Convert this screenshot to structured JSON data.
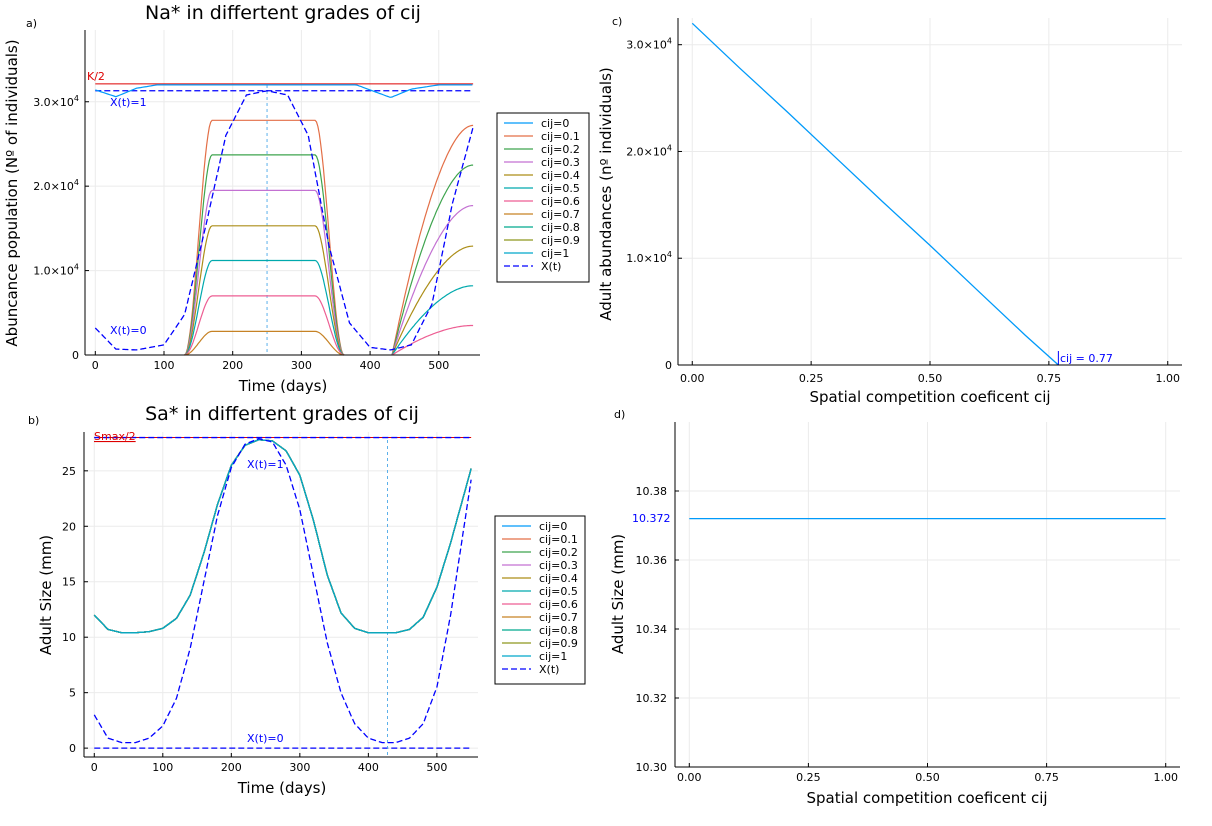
{
  "colors": {
    "palette": [
      "#009AFA",
      "#E36F47",
      "#3EA44E",
      "#C371D2",
      "#AC8E18",
      "#00A9AD",
      "#ED5E93",
      "#C68225",
      "#00A98D",
      "#8E971E",
      "#00A8CB"
    ],
    "xt": "#0000FF",
    "ref": "#DD0000",
    "grid": "#ebebeb"
  },
  "legend": {
    "series": [
      "cij=0",
      "cij=0.1",
      "cij=0.2",
      "cij=0.3",
      "cij=0.4",
      "cij=0.5",
      "cij=0.6",
      "cij=0.7",
      "cij=0.8",
      "cij=0.9",
      "cij=1"
    ],
    "xt": "X(t)"
  },
  "panel_a": {
    "tag": "a)",
    "title": "Na* in differtent grades of cij",
    "xlabel": "Time (days)",
    "ylabel": "Abuncance population (Nº of individuals)",
    "ref_label": "K/2",
    "xt1_label": "X(t)=1",
    "xt0_label": "X(t)=0",
    "xticks": [
      "0",
      "100",
      "200",
      "300",
      "400",
      "500"
    ],
    "yticks": [
      "0",
      "1.0×10",
      "2.0×10",
      "3.0×10"
    ],
    "ytick_exp": "4"
  },
  "panel_b": {
    "tag": "b)",
    "title": "Sa* in differtent grades of cij",
    "xlabel": "Time (days)",
    "ylabel": "Adult Size (mm)",
    "ref_label": "Smax/2",
    "xt1_label": "X(t)=1",
    "xt0_label": "X(t)=0",
    "xticks": [
      "0",
      "100",
      "200",
      "300",
      "400",
      "500"
    ],
    "yticks": [
      "0",
      "5",
      "10",
      "15",
      "20",
      "25"
    ]
  },
  "panel_c": {
    "tag": "c)",
    "xlabel": "Spatial competition coeficent cij",
    "ylabel": "Adult abundances (nº individuals)",
    "annotation": "cij = 0.77",
    "xticks": [
      "0.00",
      "0.25",
      "0.50",
      "0.75",
      "1.00"
    ],
    "yticks": [
      "0",
      "1.0×10",
      "2.0×10",
      "3.0×10"
    ],
    "ytick_exp": "4"
  },
  "panel_d": {
    "tag": "d)",
    "xlabel": "Spatial competition coeficent cij",
    "ylabel": "Adult Size (mm)",
    "annotation": "10.372",
    "xticks": [
      "0.00",
      "0.25",
      "0.50",
      "0.75",
      "1.00"
    ],
    "yticks": [
      "10.30",
      "10.32",
      "10.34",
      "10.36",
      "10.38"
    ]
  },
  "chart_data": [
    {
      "panel": "a",
      "type": "line",
      "title": "Na* in differtent grades of cij",
      "xlabel": "Time (days)",
      "ylabel": "Abuncance population (Nº of individuals)",
      "xlim": [
        -15,
        560
      ],
      "ylim": [
        0,
        38500
      ],
      "grid": true,
      "legend_position": "right-outside",
      "plateau_window": {
        "rise_start": 130,
        "rise_end": 170,
        "fall_start": 320,
        "fall_end": 362,
        "second_rise_start": 432,
        "end": 550
      },
      "series": [
        {
          "name": "cij=0",
          "plateau": 32000
        },
        {
          "name": "cij=0.1",
          "plateau": 27800
        },
        {
          "name": "cij=0.2",
          "plateau": 23700
        },
        {
          "name": "cij=0.3",
          "plateau": 19500
        },
        {
          "name": "cij=0.4",
          "plateau": 15300
        },
        {
          "name": "cij=0.5",
          "plateau": 11200
        },
        {
          "name": "cij=0.6",
          "plateau": 7000
        },
        {
          "name": "cij=0.7",
          "plateau": 2800
        },
        {
          "name": "cij=0.8",
          "plateau": 0
        },
        {
          "name": "cij=0.9",
          "plateau": 0
        },
        {
          "name": "cij=1",
          "plateau": 0
        }
      ],
      "series_end_values": [
        32000,
        27200,
        22500,
        17700,
        12900,
        8200,
        3500
      ],
      "xt_curve": {
        "x": [
          0,
          30,
          60,
          100,
          130,
          160,
          190,
          220,
          250,
          280,
          310,
          340,
          370,
          400,
          430,
          460,
          490,
          520,
          550
        ],
        "y": [
          3200,
          700,
          600,
          1200,
          4800,
          15000,
          26000,
          30800,
          31300,
          30800,
          26000,
          13000,
          3800,
          900,
          600,
          1200,
          6000,
          18000,
          27000
        ]
      },
      "cij0_curve": {
        "x": [
          0,
          30,
          60,
          90,
          130,
          170,
          250,
          330,
          380,
          410,
          430,
          460,
          500,
          550
        ],
        "y": [
          31400,
          30600,
          31600,
          32000,
          32000,
          32000,
          32000,
          32000,
          32000,
          31100,
          30500,
          31500,
          32000,
          32000
        ]
      },
      "reference_lines": [
        {
          "label": "K/2",
          "y": 32000
        },
        {
          "label": "X(t)=1",
          "y": 31300
        }
      ],
      "vline_x": 250
    },
    {
      "panel": "b",
      "type": "line",
      "title": "Sa* in differtent grades of cij",
      "xlabel": "Time (days)",
      "ylabel": "Adult Size (mm)",
      "xlim": [
        -15,
        560
      ],
      "ylim": [
        -0.8,
        28.5
      ],
      "grid": true,
      "legend_position": "right-outside",
      "series_curve": {
        "x": [
          0,
          20,
          40,
          60,
          80,
          100,
          120,
          140,
          160,
          180,
          200,
          220,
          240,
          260,
          280,
          300,
          320,
          340,
          360,
          380,
          400,
          420,
          440,
          460,
          480,
          500,
          520,
          550
        ],
        "y": [
          12.0,
          10.7,
          10.4,
          10.4,
          10.5,
          10.8,
          11.7,
          13.8,
          17.6,
          22.0,
          25.5,
          27.3,
          27.8,
          27.7,
          26.8,
          24.6,
          20.5,
          15.6,
          12.2,
          10.8,
          10.4,
          10.4,
          10.4,
          10.7,
          11.8,
          14.5,
          18.5,
          25.2
        ]
      },
      "xt_curve": {
        "x": [
          0,
          20,
          40,
          60,
          80,
          100,
          120,
          140,
          160,
          180,
          200,
          220,
          240,
          260,
          280,
          300,
          320,
          340,
          360,
          380,
          400,
          420,
          440,
          460,
          480,
          500,
          520,
          550
        ],
        "y": [
          3.0,
          0.9,
          0.5,
          0.5,
          0.9,
          2.0,
          4.5,
          9.0,
          15.0,
          21.0,
          25.3,
          27.4,
          27.9,
          27.6,
          25.5,
          21.5,
          15.5,
          9.5,
          5.0,
          2.2,
          0.9,
          0.5,
          0.5,
          0.9,
          2.2,
          5.5,
          12.0,
          24.2
        ]
      },
      "reference_lines": [
        {
          "label": "Smax/2",
          "y": 28.0
        },
        {
          "label": "X(t)=1",
          "y": 28.0
        },
        {
          "label": "X(t)=0",
          "y": 0
        }
      ],
      "vline_x": 428
    },
    {
      "panel": "c",
      "type": "line",
      "xlabel": "Spatial competition coeficent cij",
      "ylabel": "Adult abundances (nº individuals)",
      "xlim": [
        -0.03,
        1.03
      ],
      "ylim": [
        0,
        32500
      ],
      "grid": true,
      "x": [
        0.0,
        0.1,
        0.2,
        0.3,
        0.4,
        0.5,
        0.6,
        0.7,
        0.77
      ],
      "y": [
        32000,
        27800,
        23700,
        19500,
        15300,
        11200,
        7000,
        2800,
        0
      ],
      "annotation": {
        "text": "cij = 0.77",
        "x": 0.77,
        "y": 0
      }
    },
    {
      "panel": "d",
      "type": "line",
      "xlabel": "Spatial competition coeficent cij",
      "ylabel": "Adult Size (mm)",
      "xlim": [
        -0.03,
        1.03
      ],
      "ylim": [
        10.3,
        10.4
      ],
      "grid": true,
      "x": [
        0.0,
        0.25,
        0.5,
        0.75,
        1.0
      ],
      "y": [
        10.372,
        10.372,
        10.372,
        10.372,
        10.372
      ],
      "annotation": {
        "text": "10.372",
        "y": 10.372
      }
    }
  ]
}
